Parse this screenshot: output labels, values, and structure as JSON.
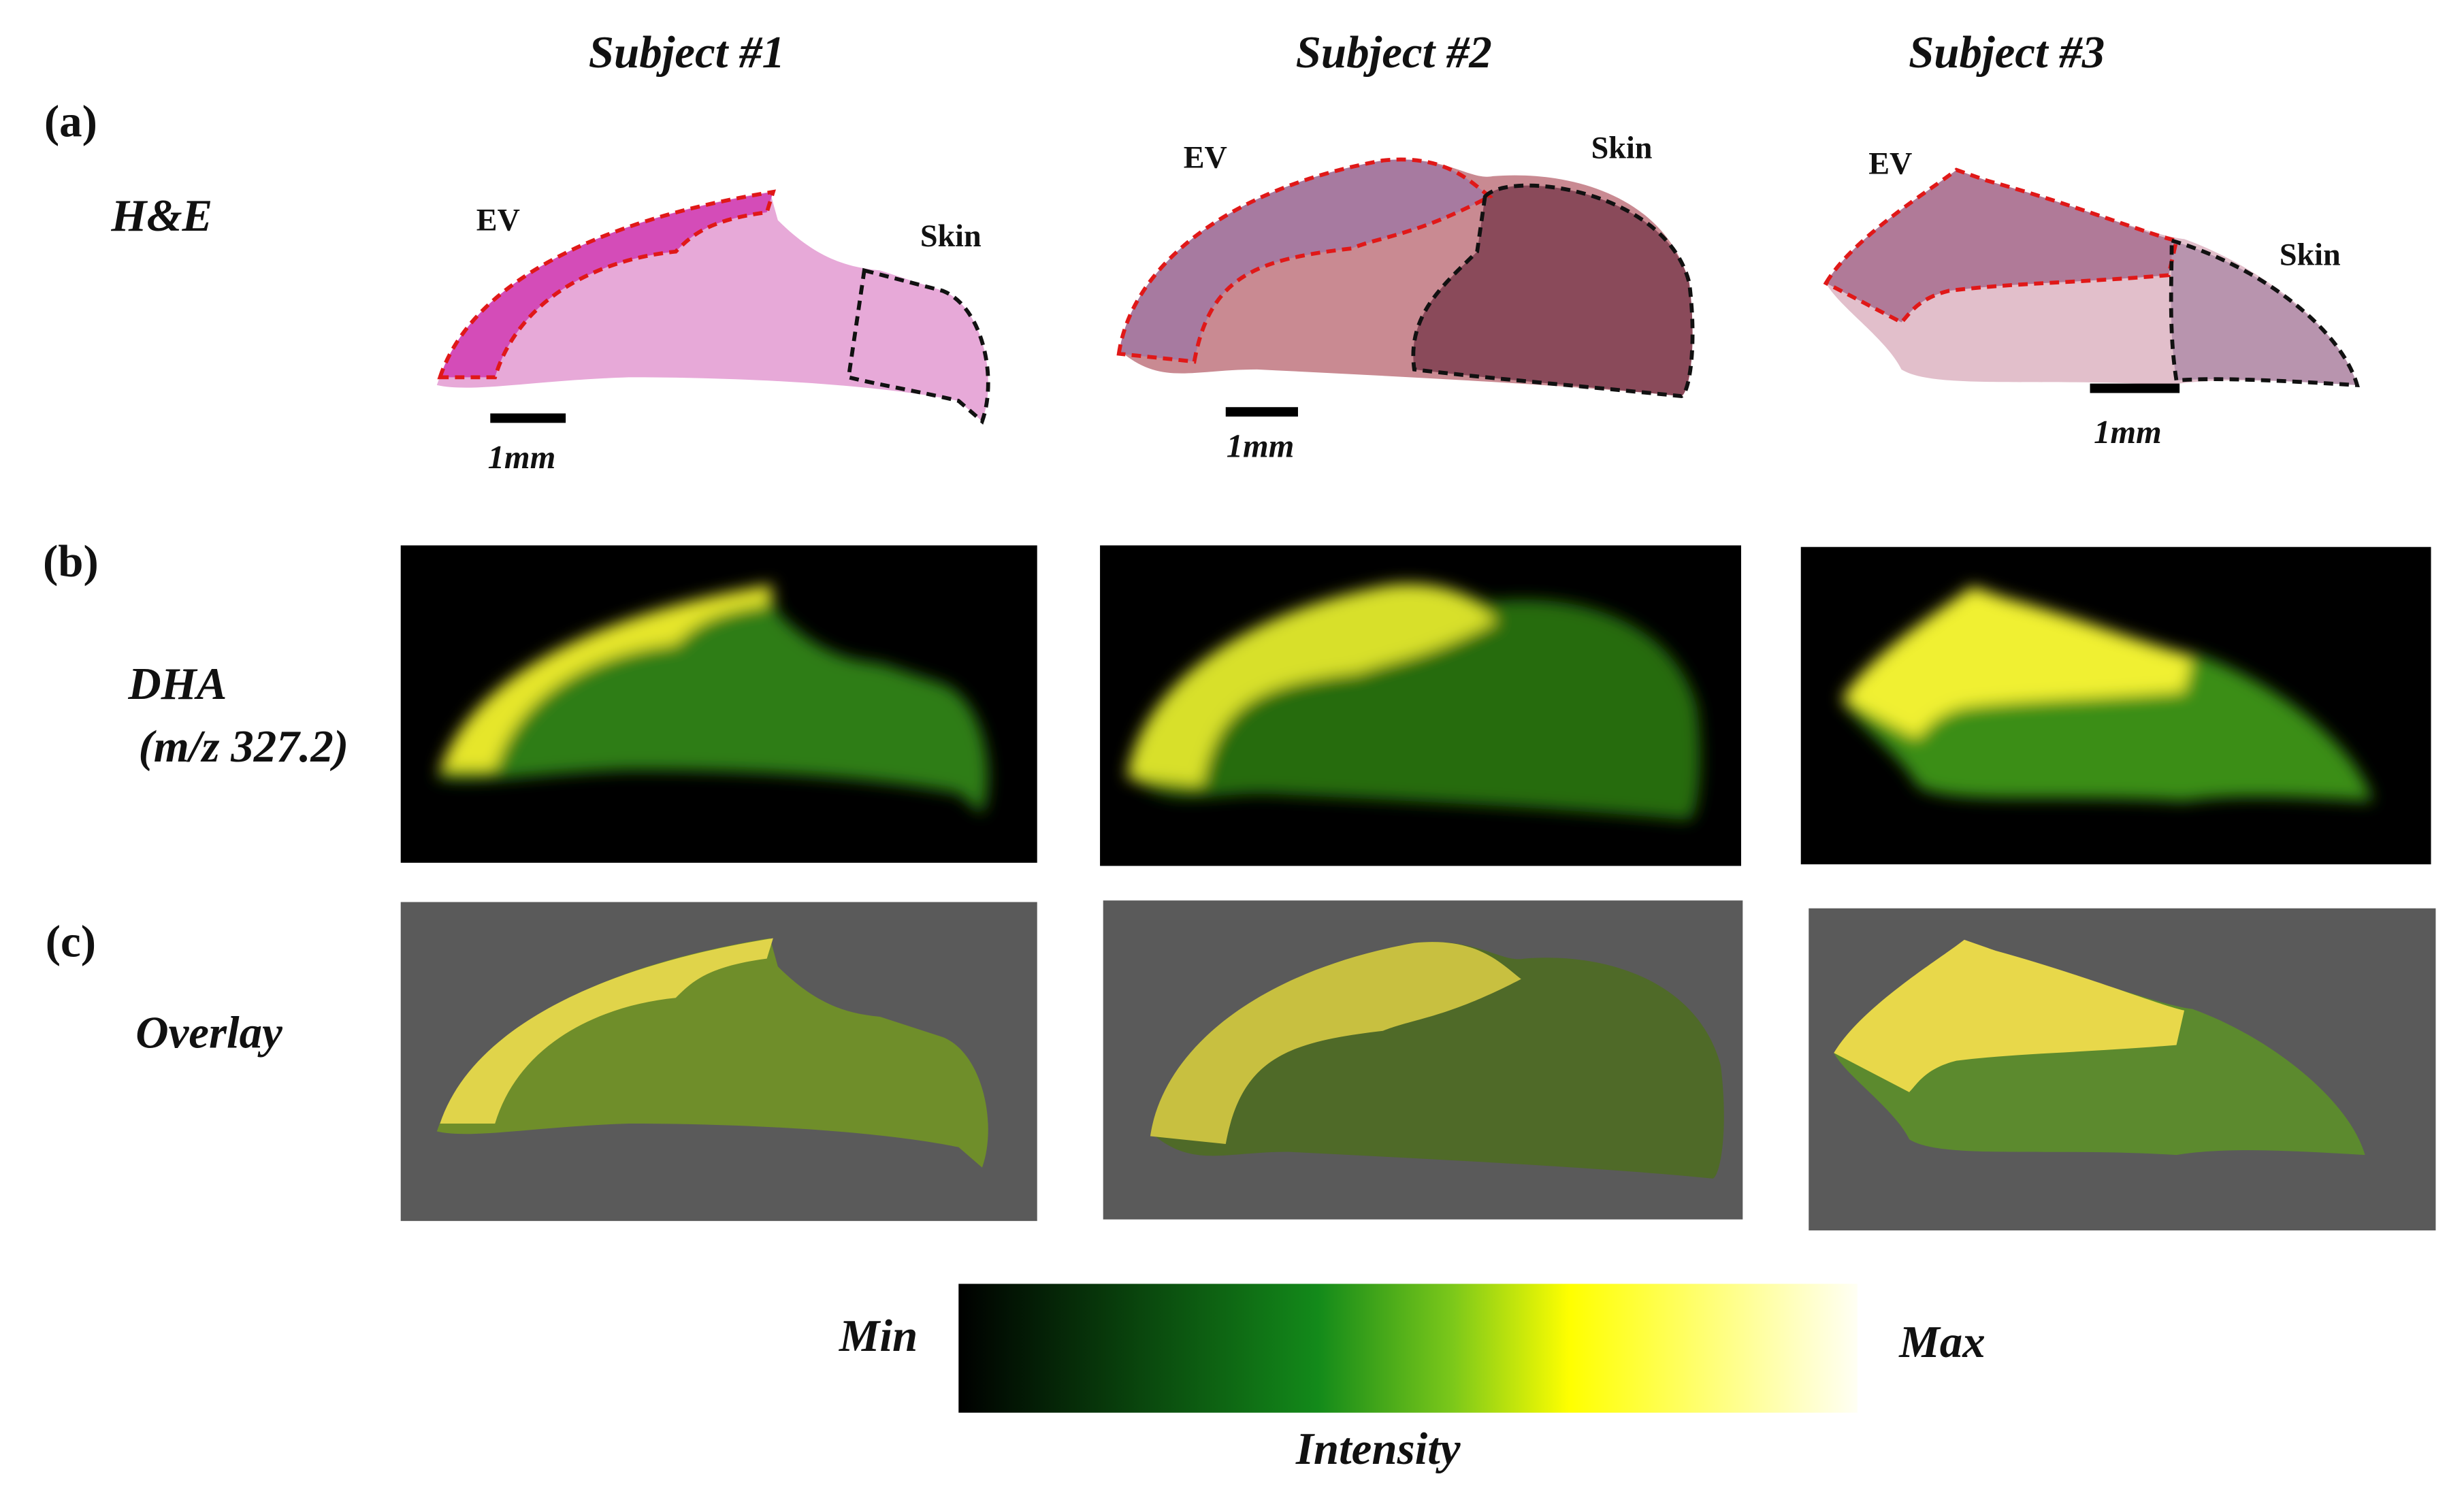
{
  "column_titles": [
    "Subject #1",
    "Subject #2",
    "Subject #3"
  ],
  "rows": [
    {
      "label": "(a)",
      "name": "H&E"
    },
    {
      "label": "(b)",
      "name": "DHA",
      "sublabel": "(m/z 327.2)"
    },
    {
      "label": "(c)",
      "name": "Overlay"
    }
  ],
  "annotations": [
    {
      "ev": "EV",
      "skin": "Skin",
      "scale": "1mm"
    },
    {
      "ev": "EV",
      "skin": "Skin",
      "scale": "1mm"
    },
    {
      "ev": "EV",
      "skin": "Skin",
      "scale": "1mm"
    }
  ],
  "colorbar": {
    "min": "Min",
    "max": "Max",
    "title": "Intensity"
  }
}
